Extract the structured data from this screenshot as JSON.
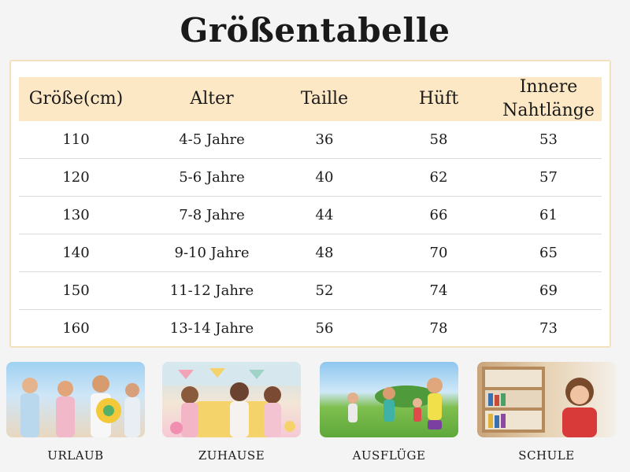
{
  "title": "Größentabelle",
  "table": {
    "headers": [
      "Größe(cm)",
      "Alter",
      "Taille",
      "Hüft",
      "Innere Nahtlänge"
    ],
    "rows": [
      [
        "110",
        "4-5 Jahre",
        "36",
        "58",
        "53"
      ],
      [
        "120",
        "5-6 Jahre",
        "40",
        "62",
        "57"
      ],
      [
        "130",
        "7-8 Jahre",
        "44",
        "66",
        "61"
      ],
      [
        "140",
        "9-10 Jahre",
        "48",
        "70",
        "65"
      ],
      [
        "150",
        "11-12 Jahre",
        "52",
        "74",
        "69"
      ],
      [
        "160",
        "13-14 Jahre",
        "56",
        "78",
        "73"
      ]
    ]
  },
  "photos": [
    {
      "caption": "URLAUB"
    },
    {
      "caption": "ZUHAUSE"
    },
    {
      "caption": "AUSFLÜGE"
    },
    {
      "caption": "SCHULE"
    }
  ],
  "colors": {
    "header_bg": "#fde8c6",
    "panel_border": "#f3e1bd"
  }
}
